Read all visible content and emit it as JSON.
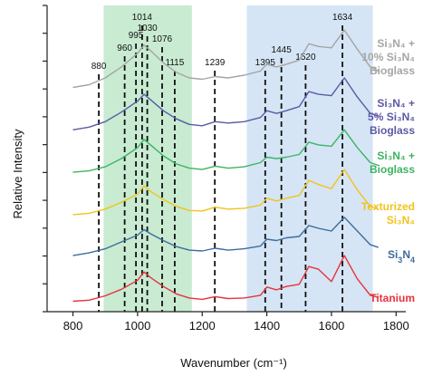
{
  "chart_data": {
    "type": "line",
    "title": "",
    "xlabel": "Wavenumber (cm⁻¹)",
    "ylabel": "Relative Intensity",
    "xlim": [
      720,
      1830
    ],
    "x_ticks": [
      800,
      1000,
      1200,
      1400,
      1600,
      1800
    ],
    "x_tick_labels": [
      "800",
      "1000",
      "1200",
      "1400",
      "1600",
      "1800"
    ],
    "y_tick_count": 12,
    "y_tick_labels_shown": false,
    "grid": false,
    "highlight_bands": [
      {
        "x0": 895,
        "x1": 1168,
        "color": "#c8ebd2"
      },
      {
        "x0": 1338,
        "x1": 1728,
        "color": "#d5e5f5"
      }
    ],
    "peak_lines": [
      {
        "x": 880,
        "label": "880"
      },
      {
        "x": 960,
        "label": "960"
      },
      {
        "x": 995,
        "label": "995"
      },
      {
        "x": 1014,
        "label": "1014"
      },
      {
        "x": 1030,
        "label": "1030"
      },
      {
        "x": 1076,
        "label": "1076"
      },
      {
        "x": 1115,
        "label": "1115"
      },
      {
        "x": 1239,
        "label": "1239"
      },
      {
        "x": 1395,
        "label": "1395"
      },
      {
        "x": 1445,
        "label": "1445"
      },
      {
        "x": 1520,
        "label": "1520"
      },
      {
        "x": 1634,
        "label": "1634"
      }
    ],
    "series": [
      {
        "name_main": "Titanium",
        "name_sub": "",
        "name_tail": "",
        "name_third": "",
        "color": "#e8323c",
        "baseline": 0.0,
        "points": [
          [
            800,
            0.18
          ],
          [
            850,
            0.22
          ],
          [
            900,
            0.38
          ],
          [
            950,
            0.62
          ],
          [
            1000,
            0.95
          ],
          [
            1020,
            1.25
          ],
          [
            1040,
            1.05
          ],
          [
            1080,
            0.72
          ],
          [
            1120,
            0.45
          ],
          [
            1160,
            0.3
          ],
          [
            1200,
            0.25
          ],
          [
            1240,
            0.35
          ],
          [
            1280,
            0.28
          ],
          [
            1330,
            0.3
          ],
          [
            1380,
            0.4
          ],
          [
            1400,
            0.7
          ],
          [
            1430,
            0.6
          ],
          [
            1460,
            0.72
          ],
          [
            1500,
            0.8
          ],
          [
            1530,
            1.45
          ],
          [
            1560,
            1.35
          ],
          [
            1600,
            0.9
          ],
          [
            1640,
            1.85
          ],
          [
            1680,
            1.0
          ],
          [
            1720,
            0.4
          ],
          [
            1745,
            0.32
          ]
        ]
      },
      {
        "name_main": "Si",
        "name_sub": "3",
        "name_tail": "N",
        "name_third": "4",
        "color": "#3e6c9e",
        "baseline": 1.75,
        "points": [
          [
            800,
            1.85
          ],
          [
            850,
            1.95
          ],
          [
            900,
            2.1
          ],
          [
            950,
            2.35
          ],
          [
            1000,
            2.6
          ],
          [
            1020,
            2.8
          ],
          [
            1040,
            2.65
          ],
          [
            1080,
            2.4
          ],
          [
            1120,
            2.18
          ],
          [
            1160,
            2.05
          ],
          [
            1200,
            2.02
          ],
          [
            1240,
            2.12
          ],
          [
            1280,
            2.05
          ],
          [
            1330,
            2.1
          ],
          [
            1380,
            2.2
          ],
          [
            1400,
            2.45
          ],
          [
            1430,
            2.4
          ],
          [
            1460,
            2.5
          ],
          [
            1500,
            2.55
          ],
          [
            1530,
            2.95
          ],
          [
            1560,
            2.85
          ],
          [
            1600,
            2.75
          ],
          [
            1640,
            3.25
          ],
          [
            1680,
            2.75
          ],
          [
            1720,
            2.25
          ],
          [
            1745,
            2.15
          ]
        ]
      },
      {
        "name_main": "Texturized",
        "name_sub": "",
        "name_tail": "Si₃N₄",
        "name_third": "",
        "color": "#f2c31c",
        "baseline": 3.3,
        "points": [
          [
            800,
            3.35
          ],
          [
            850,
            3.4
          ],
          [
            900,
            3.55
          ],
          [
            950,
            3.8
          ],
          [
            1000,
            4.1
          ],
          [
            1020,
            4.4
          ],
          [
            1040,
            4.2
          ],
          [
            1080,
            3.9
          ],
          [
            1120,
            3.65
          ],
          [
            1160,
            3.5
          ],
          [
            1200,
            3.48
          ],
          [
            1240,
            3.62
          ],
          [
            1280,
            3.55
          ],
          [
            1330,
            3.58
          ],
          [
            1380,
            3.7
          ],
          [
            1400,
            3.95
          ],
          [
            1430,
            3.85
          ],
          [
            1460,
            3.95
          ],
          [
            1500,
            4.05
          ],
          [
            1530,
            4.6
          ],
          [
            1560,
            4.45
          ],
          [
            1600,
            4.3
          ],
          [
            1640,
            5.0
          ],
          [
            1680,
            4.25
          ],
          [
            1720,
            3.65
          ],
          [
            1745,
            3.55
          ]
        ]
      },
      {
        "name_main": "Si₃N₄ +",
        "name_sub": "",
        "name_tail": "Bioglass",
        "name_third": "",
        "color": "#3cb464",
        "baseline": 4.85,
        "points": [
          [
            800,
            4.9
          ],
          [
            850,
            4.95
          ],
          [
            900,
            5.1
          ],
          [
            950,
            5.4
          ],
          [
            1000,
            5.8
          ],
          [
            1020,
            6.1
          ],
          [
            1040,
            5.9
          ],
          [
            1080,
            5.5
          ],
          [
            1120,
            5.2
          ],
          [
            1160,
            5.05
          ],
          [
            1200,
            5.0
          ],
          [
            1240,
            5.12
          ],
          [
            1280,
            5.05
          ],
          [
            1330,
            5.1
          ],
          [
            1380,
            5.25
          ],
          [
            1400,
            5.45
          ],
          [
            1430,
            5.4
          ],
          [
            1460,
            5.45
          ],
          [
            1500,
            5.55
          ],
          [
            1530,
            6.0
          ],
          [
            1560,
            5.9
          ],
          [
            1600,
            5.85
          ],
          [
            1640,
            6.45
          ],
          [
            1680,
            5.8
          ],
          [
            1720,
            5.25
          ],
          [
            1745,
            5.15
          ]
        ]
      },
      {
        "name_main": "Si₃N₄ +",
        "name_sub": "",
        "name_tail": "5% Si₃N₄",
        "name_third": "Bioglass",
        "color": "#5a5aa5",
        "baseline": 6.4,
        "points": [
          [
            800,
            6.45
          ],
          [
            850,
            6.55
          ],
          [
            900,
            6.75
          ],
          [
            950,
            7.1
          ],
          [
            1000,
            7.5
          ],
          [
            1020,
            7.75
          ],
          [
            1040,
            7.55
          ],
          [
            1080,
            7.15
          ],
          [
            1120,
            6.85
          ],
          [
            1160,
            6.65
          ],
          [
            1200,
            6.6
          ],
          [
            1240,
            6.75
          ],
          [
            1280,
            6.7
          ],
          [
            1330,
            6.75
          ],
          [
            1380,
            6.9
          ],
          [
            1400,
            7.15
          ],
          [
            1430,
            7.05
          ],
          [
            1460,
            7.15
          ],
          [
            1500,
            7.3
          ],
          [
            1530,
            7.85
          ],
          [
            1560,
            7.75
          ],
          [
            1600,
            7.7
          ],
          [
            1640,
            8.35
          ],
          [
            1680,
            7.65
          ],
          [
            1720,
            7.05
          ],
          [
            1745,
            6.95
          ]
        ]
      },
      {
        "name_main": "Si₃N₄ +",
        "name_sub": "",
        "name_tail": "10% Si₃N₄",
        "name_third": "Bioglass",
        "color": "#a5a5a5",
        "baseline": 7.9,
        "points": [
          [
            800,
            8.0
          ],
          [
            850,
            8.1
          ],
          [
            900,
            8.35
          ],
          [
            950,
            8.75
          ],
          [
            1000,
            9.25
          ],
          [
            1020,
            9.55
          ],
          [
            1040,
            9.35
          ],
          [
            1080,
            8.9
          ],
          [
            1120,
            8.55
          ],
          [
            1160,
            8.35
          ],
          [
            1200,
            8.3
          ],
          [
            1240,
            8.4
          ],
          [
            1280,
            8.35
          ],
          [
            1330,
            8.45
          ],
          [
            1380,
            8.6
          ],
          [
            1400,
            8.85
          ],
          [
            1430,
            8.75
          ],
          [
            1460,
            8.85
          ],
          [
            1500,
            9.0
          ],
          [
            1530,
            9.6
          ],
          [
            1560,
            9.5
          ],
          [
            1600,
            9.45
          ],
          [
            1640,
            10.1
          ],
          [
            1680,
            9.4
          ],
          [
            1720,
            8.75
          ],
          [
            1745,
            8.6
          ]
        ]
      }
    ]
  }
}
